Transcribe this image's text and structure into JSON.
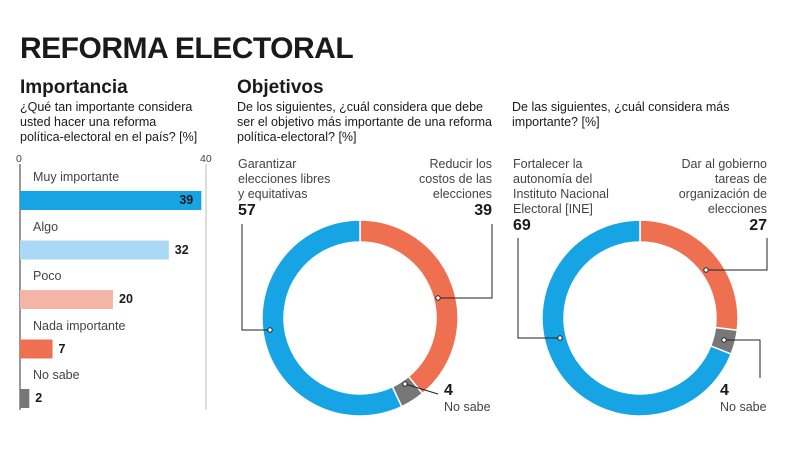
{
  "title": "REFORMA ELECTORAL",
  "section_importancia": {
    "heading": "Importancia",
    "question": [
      "¿Qué tan importante considera",
      "usted hacer una reforma",
      "política-electoral en el país? [%]"
    ]
  },
  "section_objetivos": {
    "heading": "Objetivos"
  },
  "colors": {
    "blue": "#16a4e4",
    "light_blue": "#aad9f6",
    "light_salmon": "#f5b5a6",
    "orange": "#ee7050",
    "gray": "#777777"
  },
  "chart_data": [
    {
      "type": "bar",
      "orientation": "horizontal",
      "categories": [
        "Muy importante",
        "Algo",
        "Poco",
        "Nada importante",
        "No sabe"
      ],
      "values": [
        39,
        32,
        20,
        7,
        2
      ],
      "xlim": [
        0,
        40
      ],
      "x_ticks": [
        "0",
        "40"
      ],
      "bar_colors": [
        "#16a4e4",
        "#aad9f6",
        "#f5b5a6",
        "#ee7050",
        "#777777"
      ]
    },
    {
      "type": "pie",
      "style": "donut",
      "question": [
        "De los siguientes, ¿cuál considera que debe",
        "ser el objetivo más importante de una reforma",
        "política-electoral? [%]"
      ],
      "slices": [
        {
          "label": [
            "Reducir los",
            "costos de las",
            "elecciones"
          ],
          "value": 39,
          "color": "#ee7050"
        },
        {
          "label": [
            "No sabe"
          ],
          "value": 4,
          "color": "#777777"
        },
        {
          "label": [
            "Garantizar",
            "elecciones libres",
            "y equitativas"
          ],
          "value": 57,
          "color": "#16a4e4"
        }
      ]
    },
    {
      "type": "pie",
      "style": "donut",
      "question": [
        "De las siguientes, ¿cuál considera más",
        "importante? [%]"
      ],
      "slices": [
        {
          "label": [
            "Dar al gobierno",
            "tareas de",
            "organización de",
            "elecciones"
          ],
          "value": 27,
          "color": "#ee7050"
        },
        {
          "label": [
            "No sabe"
          ],
          "value": 4,
          "color": "#777777"
        },
        {
          "label": [
            "Fortalecer la",
            "autonomía del",
            "Instituto Nacional",
            "Electoral [INE]"
          ],
          "value": 69,
          "color": "#16a4e4"
        }
      ]
    }
  ]
}
